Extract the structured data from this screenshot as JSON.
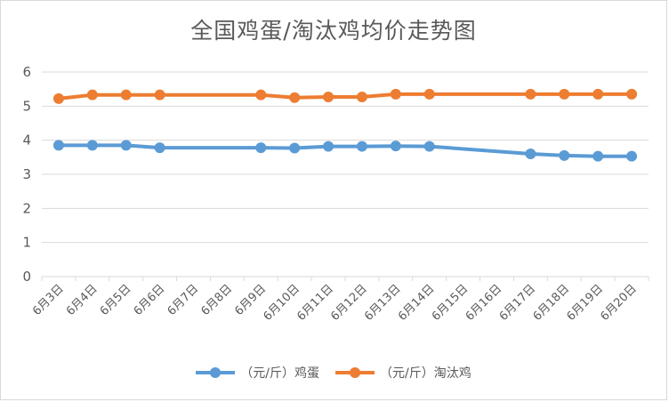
{
  "chart_data": {
    "type": "line",
    "title": "全国鸡蛋/淘汰鸡均价走势图",
    "categories": [
      "6月3日",
      "6月4日",
      "6月5日",
      "6月6日",
      "6月7日",
      "6月8日",
      "6月9日",
      "6月10日",
      "6月11日",
      "6月12日",
      "6月13日",
      "6月14日",
      "6月15日",
      "6月16日",
      "6月17日",
      "6月18日",
      "6月19日",
      "6月20日"
    ],
    "ylim": [
      0,
      6
    ],
    "yticks": [
      "0",
      "1",
      "2",
      "3",
      "4",
      "5",
      "6"
    ],
    "grid": true,
    "legend_position": "bottom",
    "series": [
      {
        "name": "（元/斤）鸡蛋",
        "color": "#5b9bd5",
        "values": [
          3.85,
          3.85,
          3.85,
          3.78,
          null,
          null,
          3.78,
          3.77,
          3.82,
          3.82,
          3.83,
          3.82,
          null,
          null,
          3.6,
          3.55,
          3.53,
          3.53
        ]
      },
      {
        "name": "（元/斤）淘汰鸡",
        "color": "#ed7d31",
        "values": [
          5.22,
          5.33,
          5.33,
          5.33,
          null,
          null,
          5.33,
          5.25,
          5.27,
          5.27,
          5.35,
          5.35,
          null,
          null,
          5.35,
          5.35,
          5.35,
          5.35
        ]
      }
    ]
  }
}
